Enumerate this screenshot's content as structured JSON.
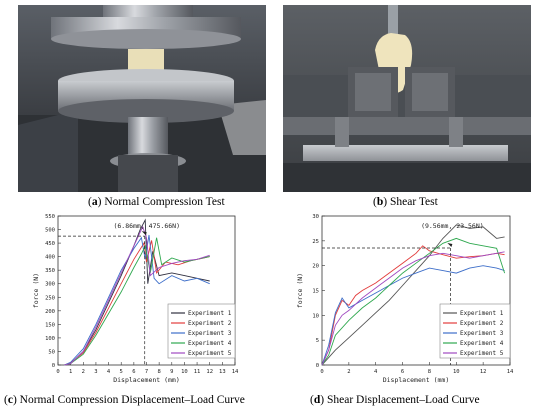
{
  "panels": [
    {
      "label": "a",
      "caption": "Normal Compression Test"
    },
    {
      "label": "b",
      "caption": "Shear Test"
    },
    {
      "label": "c",
      "caption": "Normal Compression Displacement–Load Curve"
    },
    {
      "label": "d",
      "caption": "Shear Displacement–Load Curve"
    }
  ],
  "chart_data": [
    {
      "type": "line",
      "xlabel": "Displacement (mm)",
      "ylabel": "force (N)",
      "xlim": [
        0,
        14
      ],
      "ylim": [
        0,
        550
      ],
      "xticks": [
        0,
        1,
        2,
        3,
        4,
        5,
        6,
        7,
        8,
        9,
        10,
        11,
        12,
        13,
        14
      ],
      "yticks": [
        0,
        50,
        100,
        150,
        200,
        250,
        300,
        350,
        400,
        450,
        500,
        550
      ],
      "annotation": {
        "text": "(6.86mm, 475.66N)",
        "x": 6.86,
        "y": 475.66
      },
      "legend": "bottom-right",
      "series": [
        {
          "name": "Experiment 1",
          "color": "#303040",
          "points": [
            [
              0.5,
              0
            ],
            [
              1,
              5
            ],
            [
              2,
              50
            ],
            [
              3,
              130
            ],
            [
              4,
              230
            ],
            [
              5,
              330
            ],
            [
              6,
              440
            ],
            [
              6.5,
              500
            ],
            [
              6.9,
              535
            ],
            [
              7.1,
              300
            ],
            [
              7.5,
              420
            ],
            [
              8,
              330
            ],
            [
              9,
              340
            ],
            [
              10,
              330
            ],
            [
              11,
              320
            ],
            [
              12,
              310
            ]
          ]
        },
        {
          "name": "Experiment 2",
          "color": "#e23b3b",
          "points": [
            [
              0.5,
              0
            ],
            [
              1,
              8
            ],
            [
              2,
              45
            ],
            [
              3,
              120
            ],
            [
              4,
              210
            ],
            [
              5,
              300
            ],
            [
              6,
              390
            ],
            [
              6.8,
              450
            ],
            [
              7,
              380
            ],
            [
              7.4,
              460
            ],
            [
              7.8,
              340
            ],
            [
              8.5,
              380
            ],
            [
              9.5,
              370
            ],
            [
              10.5,
              385
            ],
            [
              11.5,
              395
            ],
            [
              12,
              400
            ]
          ]
        },
        {
          "name": "Experiment 3",
          "color": "#3d6ec9",
          "points": [
            [
              0.5,
              0
            ],
            [
              1,
              10
            ],
            [
              2,
              60
            ],
            [
              3,
              150
            ],
            [
              4,
              250
            ],
            [
              5,
              350
            ],
            [
              6,
              430
            ],
            [
              6.6,
              470
            ],
            [
              6.9,
              390
            ],
            [
              7.2,
              480
            ],
            [
              7.6,
              320
            ],
            [
              8,
              300
            ],
            [
              9,
              330
            ],
            [
              10,
              310
            ],
            [
              11,
              320
            ],
            [
              12,
              300
            ]
          ]
        },
        {
          "name": "Experiment 4",
          "color": "#2fa84f",
          "points": [
            [
              0.5,
              0
            ],
            [
              1,
              5
            ],
            [
              2,
              40
            ],
            [
              3,
              110
            ],
            [
              4,
              190
            ],
            [
              5,
              270
            ],
            [
              6,
              360
            ],
            [
              6.6,
              410
            ],
            [
              6.9,
              440
            ],
            [
              7.3,
              340
            ],
            [
              7.8,
              470
            ],
            [
              8.2,
              370
            ],
            [
              9,
              395
            ],
            [
              10,
              380
            ],
            [
              11,
              390
            ],
            [
              12,
              400
            ]
          ]
        },
        {
          "name": "Experiment 5",
          "color": "#a04ac0",
          "points": [
            [
              0.5,
              0
            ],
            [
              1,
              5
            ],
            [
              2,
              50
            ],
            [
              3,
              140
            ],
            [
              4,
              240
            ],
            [
              5,
              340
            ],
            [
              6,
              440
            ],
            [
              6.7,
              510
            ],
            [
              7,
              470
            ],
            [
              7.3,
              330
            ],
            [
              8,
              360
            ],
            [
              9,
              375
            ],
            [
              10,
              385
            ],
            [
              11,
              390
            ],
            [
              12,
              405
            ]
          ]
        }
      ]
    },
    {
      "type": "line",
      "xlabel": "Displacement (mm)",
      "ylabel": "force (N)",
      "xlim": [
        0,
        14
      ],
      "ylim": [
        0,
        30
      ],
      "xticks": [
        0,
        2,
        4,
        6,
        8,
        10,
        12,
        14
      ],
      "yticks": [
        0,
        5,
        10,
        15,
        20,
        25,
        30
      ],
      "annotation": {
        "text": "(9.56mm, 23.56N)",
        "x": 9.56,
        "y": 23.56
      },
      "legend": "bottom-right",
      "series": [
        {
          "name": "Experiment 1",
          "color": "#555555",
          "points": [
            [
              0,
              0
            ],
            [
              0.5,
              1.5
            ],
            [
              1,
              3
            ],
            [
              2,
              5.5
            ],
            [
              3,
              8
            ],
            [
              4,
              10.5
            ],
            [
              5,
              13
            ],
            [
              6,
              16
            ],
            [
              7,
              19
            ],
            [
              8,
              22
            ],
            [
              9,
              25.5
            ],
            [
              9.56,
              27
            ],
            [
              10,
              28.2
            ],
            [
              11,
              27.5
            ],
            [
              12,
              27.8
            ],
            [
              13,
              25.5
            ],
            [
              13.6,
              25.8
            ]
          ]
        },
        {
          "name": "Experiment 2",
          "color": "#e23b3b",
          "points": [
            [
              0,
              0
            ],
            [
              0.5,
              3
            ],
            [
              1,
              10
            ],
            [
              1.5,
              13
            ],
            [
              2,
              12
            ],
            [
              2.5,
              14
            ],
            [
              3,
              15
            ],
            [
              4,
              16.5
            ],
            [
              5,
              18.5
            ],
            [
              6,
              20.5
            ],
            [
              7,
              22.5
            ],
            [
              7.5,
              24
            ],
            [
              8,
              23
            ],
            [
              9,
              22.2
            ],
            [
              10,
              21.5
            ],
            [
              11,
              21.8
            ],
            [
              12,
              22
            ],
            [
              13,
              22.5
            ],
            [
              13.6,
              22.2
            ]
          ]
        },
        {
          "name": "Experiment 3",
          "color": "#3d6ec9",
          "points": [
            [
              0,
              0
            ],
            [
              0.5,
              4
            ],
            [
              1,
              10.5
            ],
            [
              1.5,
              13.5
            ],
            [
              2,
              11.5
            ],
            [
              3,
              13
            ],
            [
              4,
              14.5
            ],
            [
              5,
              16
            ],
            [
              6,
              17.5
            ],
            [
              7,
              18.5
            ],
            [
              8,
              19.5
            ],
            [
              9,
              19
            ],
            [
              10,
              18.5
            ],
            [
              11,
              19.5
            ],
            [
              12,
              20
            ],
            [
              13,
              19.5
            ],
            [
              13.6,
              19
            ]
          ]
        },
        {
          "name": "Experiment 4",
          "color": "#2fa84f",
          "points": [
            [
              0,
              0
            ],
            [
              0.5,
              2
            ],
            [
              1,
              6
            ],
            [
              2,
              9
            ],
            [
              3,
              11.5
            ],
            [
              4,
              13.5
            ],
            [
              5,
              16
            ],
            [
              6,
              18.5
            ],
            [
              7,
              20.5
            ],
            [
              8,
              22.5
            ],
            [
              9,
              24.5
            ],
            [
              10,
              25.5
            ],
            [
              11,
              24.5
            ],
            [
              12,
              24
            ],
            [
              13,
              23.5
            ],
            [
              13.6,
              18.5
            ]
          ]
        },
        {
          "name": "Experiment 5",
          "color": "#a04ac0",
          "points": [
            [
              0,
              0
            ],
            [
              0.5,
              3
            ],
            [
              1,
              8
            ],
            [
              1.5,
              10
            ],
            [
              2,
              11
            ],
            [
              3,
              13.5
            ],
            [
              4,
              15.5
            ],
            [
              5,
              17.5
            ],
            [
              6,
              19.5
            ],
            [
              7,
              21
            ],
            [
              8,
              22
            ],
            [
              9,
              22.5
            ],
            [
              10,
              22
            ],
            [
              11,
              21.5
            ],
            [
              12,
              22
            ],
            [
              13,
              22.5
            ],
            [
              13.6,
              22.8
            ]
          ]
        }
      ]
    }
  ]
}
